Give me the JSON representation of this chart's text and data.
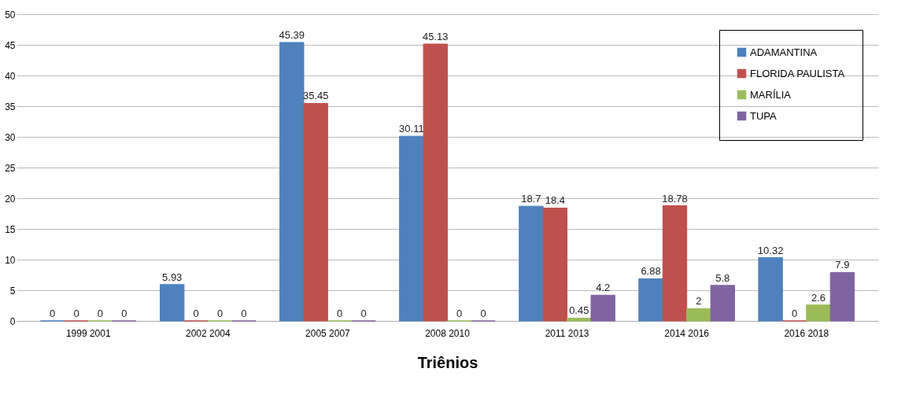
{
  "chart_data": {
    "type": "bar",
    "xlabel": "Triênios",
    "categories": [
      "1999  2001",
      "2002  2004",
      "2005  2007",
      "2008  2010",
      "2011  2013",
      "2014  2016",
      "2016  2018"
    ],
    "series": [
      {
        "name": "ADAMANTINA",
        "color": "#4f81bd",
        "values": [
          0,
          5.93,
          45.39,
          30.11,
          18.7,
          6.88,
          10.32
        ]
      },
      {
        "name": "FLORIDA PAULISTA",
        "color": "#c0504d",
        "values": [
          0,
          0,
          35.45,
          45.13,
          18.4,
          18.78,
          0
        ]
      },
      {
        "name": "MARÍLIA",
        "color": "#9bbb59",
        "values": [
          0,
          0,
          0,
          0,
          0.45,
          2,
          2.6
        ]
      },
      {
        "name": "TUPA",
        "color": "#8064a2",
        "values": [
          0,
          0,
          0,
          0,
          4.2,
          5.8,
          7.9
        ]
      }
    ],
    "ylim": [
      0,
      50
    ],
    "yticks": [
      0,
      5,
      10,
      15,
      20,
      25,
      30,
      35,
      40,
      45,
      50
    ],
    "grid": "y",
    "legend": "top right",
    "data_labels": true
  }
}
